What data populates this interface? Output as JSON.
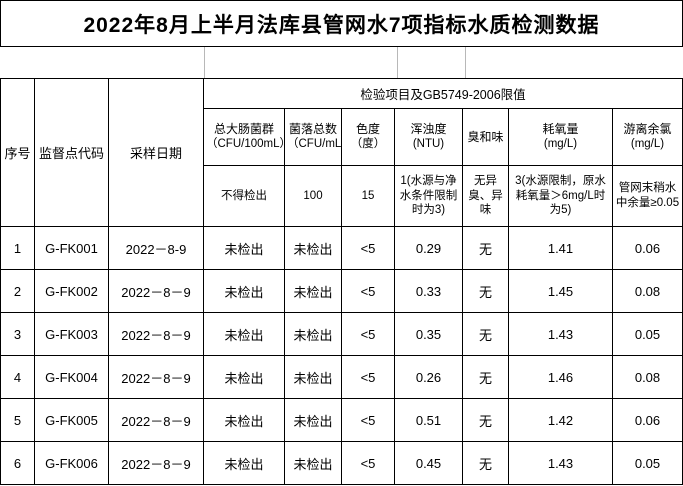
{
  "title": "2022年8月上半月法库县管网水7项指标水质检测数据",
  "table": {
    "header": {
      "seq": "序号",
      "site_code": "监督点代码",
      "sample_date": "采样日期",
      "group_header": "检验项目及GB5749-2006限值",
      "columns": [
        {
          "label": "总大肠菌群",
          "unit": "（CFU/100mL）",
          "limit": "不得检出"
        },
        {
          "label": "菌落总数",
          "unit": "（CFU/mL）",
          "limit": "100"
        },
        {
          "label": "色度",
          "unit": "（度）",
          "limit": "15"
        },
        {
          "label": "浑浊度",
          "unit": "(NTU)",
          "limit": "1(水源与净水条件限制时为3)"
        },
        {
          "label": "臭和味",
          "unit": "",
          "limit": "无异臭、异味"
        },
        {
          "label": "耗氧量",
          "unit": "(mg/L)",
          "limit": "3(水源限制，原水耗氧量＞6mg/L时为5)"
        },
        {
          "label": "游离余氯",
          "unit": "(mg/L)",
          "limit": "管网末稍水中余量≥0.05"
        }
      ]
    },
    "rows": [
      {
        "seq": "1",
        "code": "G-FK001",
        "date": "2022－8-9",
        "values": [
          "未检出",
          "未检出",
          "<5",
          "0.29",
          "无",
          "1.41",
          "0.06"
        ]
      },
      {
        "seq": "2",
        "code": "G-FK002",
        "date": "2022－8－9",
        "values": [
          "未检出",
          "未检出",
          "<5",
          "0.33",
          "无",
          "1.45",
          "0.08"
        ]
      },
      {
        "seq": "3",
        "code": "G-FK003",
        "date": "2022－8－9",
        "values": [
          "未检出",
          "未检出",
          "<5",
          "0.35",
          "无",
          "1.43",
          "0.05"
        ]
      },
      {
        "seq": "4",
        "code": "G-FK004",
        "date": "2022－8－9",
        "values": [
          "未检出",
          "未检出",
          "<5",
          "0.26",
          "无",
          "1.46",
          "0.08"
        ]
      },
      {
        "seq": "5",
        "code": "G-FK005",
        "date": "2022－8－9",
        "values": [
          "未检出",
          "未检出",
          "<5",
          "0.51",
          "无",
          "1.42",
          "0.06"
        ]
      },
      {
        "seq": "6",
        "code": "G-FK006",
        "date": "2022－8－9",
        "values": [
          "未检出",
          "未检出",
          "<5",
          "0.45",
          "无",
          "1.43",
          "0.05"
        ]
      }
    ]
  },
  "colors": {
    "text": "#000000",
    "border": "#000000",
    "faint_grid": "#b8b8b8",
    "background": "#ffffff"
  }
}
